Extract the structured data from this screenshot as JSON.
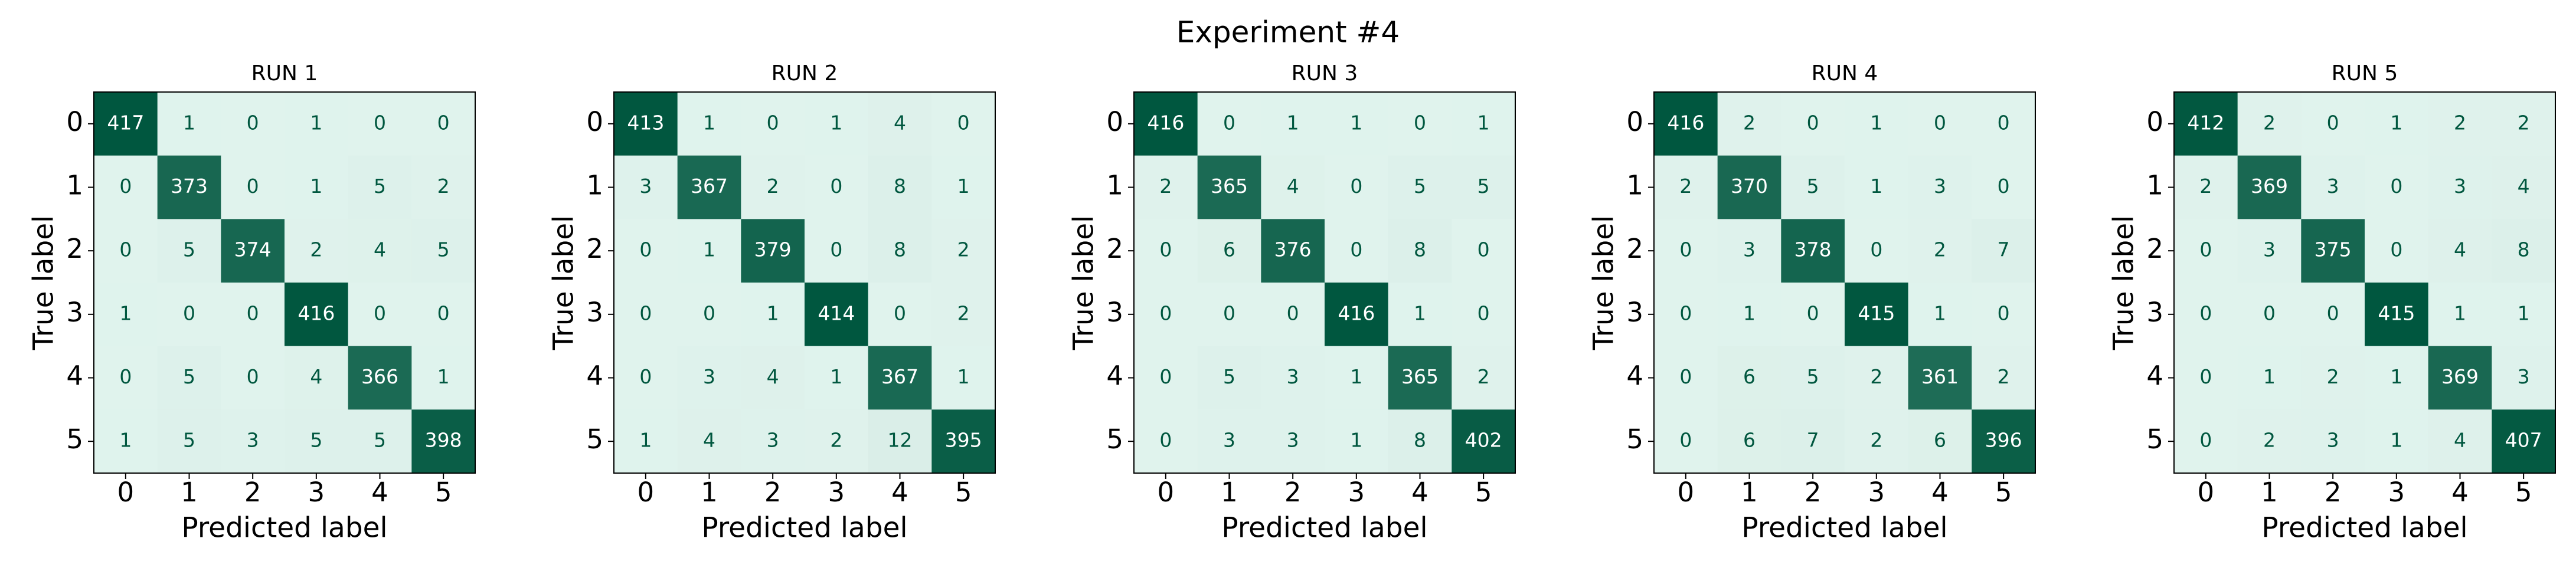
{
  "title": "Experiment #4",
  "chart_data": [
    {
      "type": "heatmap",
      "title": "RUN 1",
      "xlabel": "Predicted label",
      "ylabel": "True label",
      "x": [
        "0",
        "1",
        "2",
        "3",
        "4",
        "5"
      ],
      "y": [
        "0",
        "1",
        "2",
        "3",
        "4",
        "5"
      ],
      "colors": [
        "#e0f3ed",
        "#00573f"
      ],
      "values": [
        [
          417,
          1,
          0,
          1,
          0,
          0
        ],
        [
          0,
          373,
          0,
          1,
          5,
          2
        ],
        [
          0,
          5,
          374,
          2,
          4,
          5
        ],
        [
          1,
          0,
          0,
          416,
          0,
          0
        ],
        [
          0,
          5,
          0,
          4,
          366,
          1
        ],
        [
          1,
          5,
          3,
          5,
          5,
          398
        ]
      ]
    },
    {
      "type": "heatmap",
      "title": "RUN 2",
      "xlabel": "Predicted label",
      "ylabel": "True label",
      "x": [
        "0",
        "1",
        "2",
        "3",
        "4",
        "5"
      ],
      "y": [
        "0",
        "1",
        "2",
        "3",
        "4",
        "5"
      ],
      "colors": [
        "#e0f3ed",
        "#00573f"
      ],
      "values": [
        [
          413,
          1,
          0,
          1,
          4,
          0
        ],
        [
          3,
          367,
          2,
          0,
          8,
          1
        ],
        [
          0,
          1,
          379,
          0,
          8,
          2
        ],
        [
          0,
          0,
          1,
          414,
          0,
          2
        ],
        [
          0,
          3,
          4,
          1,
          367,
          1
        ],
        [
          1,
          4,
          3,
          2,
          12,
          395
        ]
      ]
    },
    {
      "type": "heatmap",
      "title": "RUN 3",
      "xlabel": "Predicted label",
      "ylabel": "True label",
      "x": [
        "0",
        "1",
        "2",
        "3",
        "4",
        "5"
      ],
      "y": [
        "0",
        "1",
        "2",
        "3",
        "4",
        "5"
      ],
      "colors": [
        "#e0f3ed",
        "#00573f"
      ],
      "values": [
        [
          416,
          0,
          1,
          1,
          0,
          1
        ],
        [
          2,
          365,
          4,
          0,
          5,
          5
        ],
        [
          0,
          6,
          376,
          0,
          8,
          0
        ],
        [
          0,
          0,
          0,
          416,
          1,
          0
        ],
        [
          0,
          5,
          3,
          1,
          365,
          2
        ],
        [
          0,
          3,
          3,
          1,
          8,
          402
        ]
      ]
    },
    {
      "type": "heatmap",
      "title": "RUN 4",
      "xlabel": "Predicted label",
      "ylabel": "True label",
      "x": [
        "0",
        "1",
        "2",
        "3",
        "4",
        "5"
      ],
      "y": [
        "0",
        "1",
        "2",
        "3",
        "4",
        "5"
      ],
      "colors": [
        "#e0f3ed",
        "#00573f"
      ],
      "values": [
        [
          416,
          2,
          0,
          1,
          0,
          0
        ],
        [
          2,
          370,
          5,
          1,
          3,
          0
        ],
        [
          0,
          3,
          378,
          0,
          2,
          7
        ],
        [
          0,
          1,
          0,
          415,
          1,
          0
        ],
        [
          0,
          6,
          5,
          2,
          361,
          2
        ],
        [
          0,
          6,
          7,
          2,
          6,
          396
        ]
      ]
    },
    {
      "type": "heatmap",
      "title": "RUN 5",
      "xlabel": "Predicted label",
      "ylabel": "True label",
      "x": [
        "0",
        "1",
        "2",
        "3",
        "4",
        "5"
      ],
      "y": [
        "0",
        "1",
        "2",
        "3",
        "4",
        "5"
      ],
      "colors": [
        "#e0f3ed",
        "#00573f"
      ],
      "values": [
        [
          412,
          2,
          0,
          1,
          2,
          2
        ],
        [
          2,
          369,
          3,
          0,
          3,
          4
        ],
        [
          0,
          3,
          375,
          0,
          4,
          8
        ],
        [
          0,
          0,
          0,
          415,
          1,
          1
        ],
        [
          0,
          1,
          2,
          1,
          369,
          3
        ],
        [
          0,
          2,
          3,
          1,
          4,
          407
        ]
      ]
    }
  ]
}
